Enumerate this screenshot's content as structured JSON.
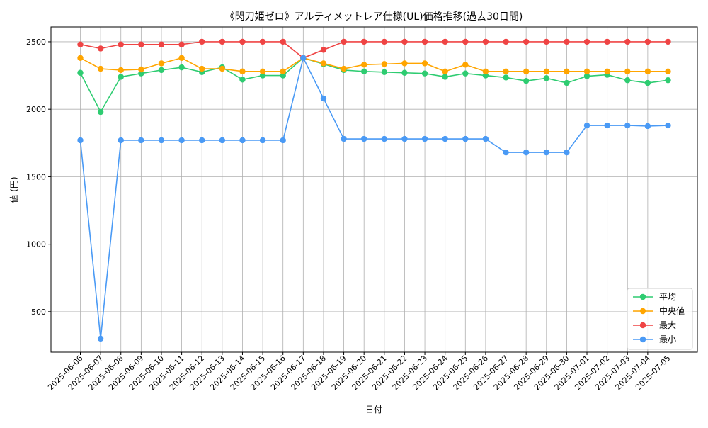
{
  "chart_data": {
    "type": "line",
    "title": "《閃刀姫ゼロ》アルティメットレア仕様(UL)価格推移(過去30日間)",
    "xlabel": "日付",
    "ylabel": "値 (円)",
    "ylim": [
      200,
      2610
    ],
    "yticks": [
      500,
      1000,
      1500,
      2000,
      2500
    ],
    "grid": true,
    "legend_position": "lower-right",
    "categories": [
      "2025-06-06",
      "2025-06-07",
      "2025-06-08",
      "2025-06-09",
      "2025-06-10",
      "2025-06-11",
      "2025-06-12",
      "2025-06-13",
      "2025-06-14",
      "2025-06-15",
      "2025-06-16",
      "2025-06-17",
      "2025-06-18",
      "2025-06-19",
      "2025-06-20",
      "2025-06-21",
      "2025-06-22",
      "2025-06-23",
      "2025-06-24",
      "2025-06-25",
      "2025-06-26",
      "2025-06-27",
      "2025-06-28",
      "2025-06-29",
      "2025-06-30",
      "2025-07-01",
      "2025-07-02",
      "2025-07-03",
      "2025-07-04",
      "2025-07-05"
    ],
    "series": [
      {
        "name": "平均",
        "color": "#2ecc71",
        "values": [
          2270,
          1980,
          2240,
          2265,
          2290,
          2310,
          2275,
          2310,
          2220,
          2250,
          2250,
          2380,
          2335,
          2290,
          2280,
          2275,
          2270,
          2265,
          2240,
          2265,
          2250,
          2235,
          2210,
          2230,
          2195,
          2245,
          2255,
          2215,
          2195,
          2215
        ]
      },
      {
        "name": "中央値",
        "color": "#ffa500",
        "values": [
          2380,
          2300,
          2290,
          2295,
          2340,
          2380,
          2300,
          2300,
          2280,
          2280,
          2280,
          2380,
          2340,
          2300,
          2330,
          2335,
          2340,
          2340,
          2280,
          2330,
          2280,
          2280,
          2280,
          2280,
          2280,
          2280,
          2280,
          2280,
          2280,
          2280
        ]
      },
      {
        "name": "最大",
        "color": "#ef4444",
        "values": [
          2480,
          2450,
          2480,
          2480,
          2480,
          2480,
          2500,
          2500,
          2500,
          2500,
          2500,
          2380,
          2440,
          2500,
          2500,
          2500,
          2500,
          2500,
          2500,
          2500,
          2500,
          2500,
          2500,
          2500,
          2500,
          2500,
          2500,
          2500,
          2500,
          2500
        ]
      },
      {
        "name": "最小",
        "color": "#4a9af5",
        "values": [
          1770,
          300,
          1770,
          1770,
          1770,
          1770,
          1770,
          1770,
          1770,
          1770,
          1770,
          2380,
          2080,
          1780,
          1780,
          1780,
          1780,
          1780,
          1780,
          1780,
          1780,
          1680,
          1680,
          1680,
          1680,
          1880,
          1880,
          1880,
          1875,
          1880
        ]
      }
    ]
  }
}
